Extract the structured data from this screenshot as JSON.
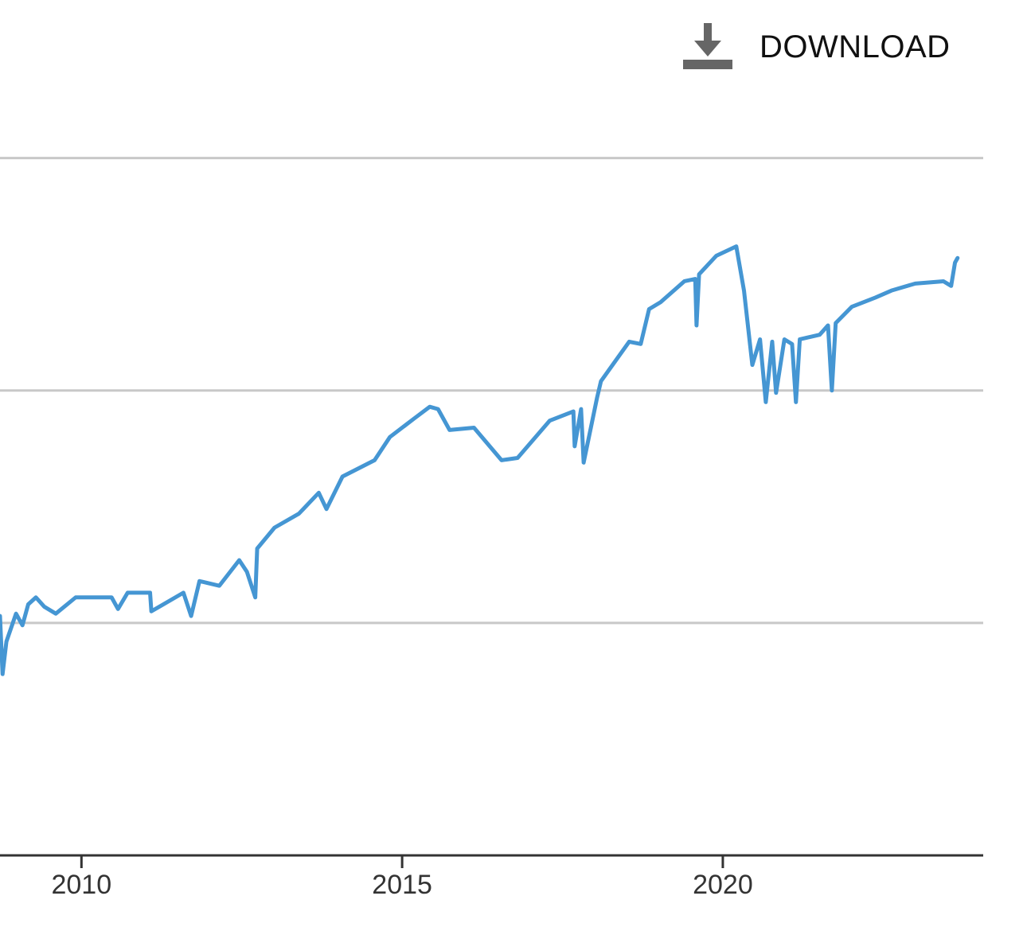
{
  "toolbar": {
    "download": "DOWNLOAD"
  },
  "chart_data": {
    "type": "line",
    "x": [
      2008.73,
      2008.77,
      2008.83,
      2008.98,
      2009.08,
      2009.17,
      2009.29,
      2009.42,
      2009.6,
      2009.91,
      2010.47,
      2010.57,
      2010.72,
      2011.07,
      2011.09,
      2011.59,
      2011.71,
      2011.84,
      2012.15,
      2012.46,
      2012.58,
      2012.71,
      2012.74,
      2013.01,
      2013.39,
      2013.7,
      2013.82,
      2014.07,
      2014.57,
      2014.81,
      2015.19,
      2015.43,
      2015.56,
      2015.74,
      2016.12,
      2016.55,
      2016.8,
      2017.3,
      2017.67,
      2017.69,
      2017.79,
      2017.83,
      2018.04,
      2018.1,
      2018.54,
      2018.72,
      2018.85,
      2019.03,
      2019.4,
      2019.57,
      2019.59,
      2019.63,
      2019.9,
      2020.21,
      2020.33,
      2020.46,
      2020.58,
      2020.67,
      2020.77,
      2020.83,
      2020.96,
      2021.08,
      2021.14,
      2021.2,
      2021.51,
      2021.64,
      2021.7,
      2021.76,
      2022.01,
      2022.38,
      2022.63,
      2023.0,
      2023.44,
      2023.56,
      2023.62,
      2023.66
    ],
    "series": [
      {
        "color": "#4596d3",
        "values": [
          1.03,
          0.78,
          0.92,
          1.04,
          0.99,
          1.08,
          1.11,
          1.07,
          1.04,
          1.11,
          1.11,
          1.06,
          1.13,
          1.13,
          1.05,
          1.13,
          1.03,
          1.18,
          1.16,
          1.27,
          1.22,
          1.11,
          1.32,
          1.41,
          1.47,
          1.56,
          1.49,
          1.63,
          1.7,
          1.8,
          1.88,
          1.93,
          1.92,
          1.83,
          1.84,
          1.7,
          1.71,
          1.87,
          1.91,
          1.76,
          1.92,
          1.69,
          1.97,
          2.04,
          2.21,
          2.2,
          2.35,
          2.38,
          2.47,
          2.48,
          2.28,
          2.5,
          2.58,
          2.62,
          2.43,
          2.11,
          2.22,
          1.95,
          2.21,
          1.99,
          2.22,
          2.2,
          1.95,
          2.22,
          2.24,
          2.28,
          2.0,
          2.29,
          2.36,
          2.4,
          2.43,
          2.46,
          2.47,
          2.45,
          2.55,
          2.57
        ]
      }
    ],
    "xlim": [
      2008.73,
      2024.06
    ],
    "xticks": [
      2010,
      2015,
      2020
    ],
    "ylim": [
      0,
      3.3
    ],
    "ygrid": [
      1,
      2,
      3
    ],
    "grid": true
  }
}
